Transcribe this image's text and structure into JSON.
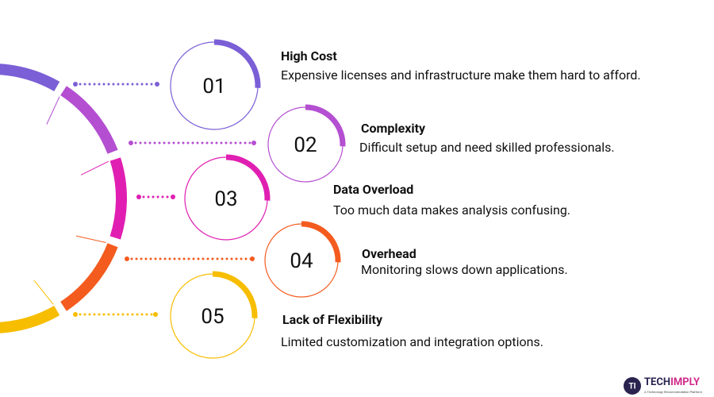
{
  "items": [
    {
      "number": "01",
      "title": "High Cost",
      "description": "Expensive licenses and infrastructure make them hard to afford."
    },
    {
      "number": "02",
      "title": "Complexity",
      "description": "Difficult setup and need skilled professionals."
    },
    {
      "number": "03",
      "title": "Data Overload",
      "description": "Too much data makes analysis confusing."
    },
    {
      "number": "04",
      "title": "Overhead",
      "description": "Monitoring slows down applications."
    },
    {
      "number": "05",
      "title": "Lack of Flexibility",
      "description": "Limited customization and integration options."
    }
  ],
  "logo": {
    "brand_a": "TECH",
    "brand_b": "IMPLY",
    "tagline": "A Technology Recommendation Platform",
    "icon": "TI"
  }
}
